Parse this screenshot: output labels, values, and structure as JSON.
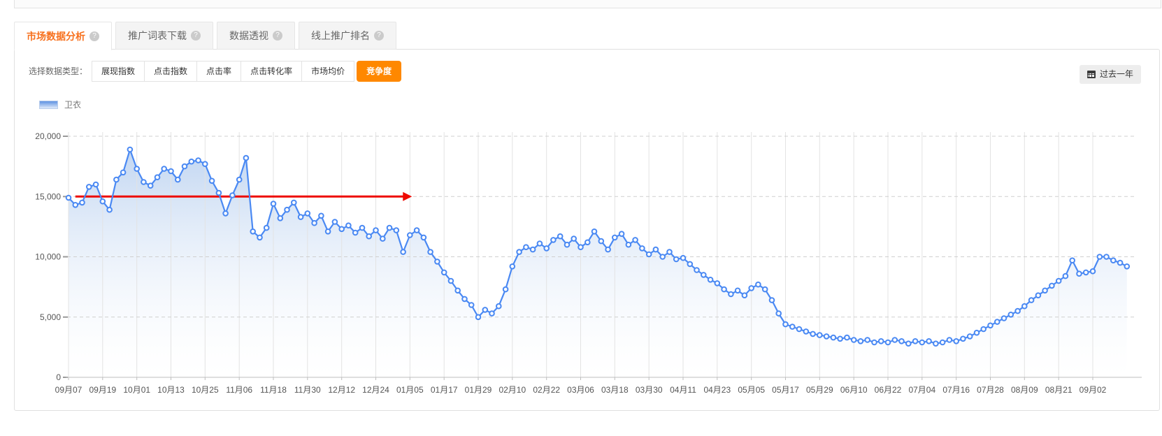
{
  "top_tabs": [
    {
      "label": "市场数据分析",
      "active": true
    },
    {
      "label": "推广词表下载",
      "active": false
    },
    {
      "label": "数据透视",
      "active": false
    },
    {
      "label": "线上推广排名",
      "active": false
    }
  ],
  "icons": {
    "help": "?",
    "calendar": "calendar-icon"
  },
  "controls": {
    "data_type_label": "选择数据类型：",
    "data_types": [
      {
        "label": "展现指数",
        "selected": false
      },
      {
        "label": "点击指数",
        "selected": false
      },
      {
        "label": "点击率",
        "selected": false
      },
      {
        "label": "点击转化率",
        "selected": false
      },
      {
        "label": "市场均价",
        "selected": false
      },
      {
        "label": "竞争度",
        "selected": true
      }
    ],
    "date_range": {
      "label": "过去一年",
      "icon": "calendar-icon"
    }
  },
  "legend": [
    {
      "label": "卫衣"
    }
  ],
  "colors": {
    "accent_orange": "#ff8800",
    "tab_active_text": "#f7701d",
    "line_blue": "#4a89f3",
    "area_top": "#b7cfef",
    "annotation_red": "#ee0900",
    "grid_v": "#e3e3e3",
    "grid_h": "#cfcfcf",
    "axis": "#bdbdbd",
    "tick_text": "#555555"
  },
  "chart_data": {
    "type": "line",
    "title": "",
    "xlabel": "",
    "ylabel": "",
    "ylim": [
      0,
      20000
    ],
    "y_ticks": [
      0,
      5000,
      10000,
      15000,
      20000
    ],
    "grid": true,
    "legend_position": "top-left",
    "x_tick_labels": [
      "09月07",
      "09月19",
      "10月01",
      "10月13",
      "10月25",
      "11月06",
      "11月18",
      "11月30",
      "12月12",
      "12月24",
      "01月05",
      "01月17",
      "01月29",
      "02月10",
      "02月22",
      "03月06",
      "03月18",
      "03月30",
      "04月11",
      "04月23",
      "05月05",
      "05月17",
      "05月29",
      "06月10",
      "06月22",
      "07月04",
      "07月16",
      "07月28",
      "08月09",
      "08月21",
      "09月02"
    ],
    "x_tick_every": 5,
    "series": [
      {
        "name": "卫衣",
        "marker": "circle-open",
        "values": [
          14900,
          14300,
          14500,
          15800,
          16000,
          14600,
          13900,
          16400,
          17000,
          18900,
          17300,
          16200,
          15900,
          16600,
          17300,
          17100,
          16400,
          17500,
          17900,
          18000,
          17700,
          16300,
          15300,
          13600,
          15100,
          16400,
          18200,
          12100,
          11600,
          12400,
          14400,
          13200,
          13900,
          14500,
          13300,
          13600,
          12800,
          13400,
          12100,
          12900,
          12300,
          12600,
          12000,
          12400,
          11700,
          12200,
          11500,
          12400,
          12200,
          10400,
          11800,
          12200,
          11600,
          10400,
          9600,
          8700,
          8000,
          7200,
          6500,
          6000,
          5000,
          5600,
          5300,
          5900,
          7300,
          9200,
          10400,
          10800,
          10600,
          11100,
          10700,
          11400,
          11700,
          11000,
          11500,
          10800,
          11200,
          12100,
          11300,
          10600,
          11600,
          11900,
          11000,
          11400,
          10700,
          10200,
          10600,
          10000,
          10400,
          9800,
          9900,
          9400,
          8900,
          8500,
          8100,
          7800,
          7300,
          6900,
          7200,
          6800,
          7400,
          7700,
          7300,
          6400,
          5300,
          4400,
          4200,
          4000,
          3800,
          3600,
          3500,
          3400,
          3300,
          3200,
          3300,
          3100,
          3000,
          3100,
          2900,
          3000,
          2900,
          3100,
          3000,
          2800,
          3000,
          2900,
          3000,
          2800,
          2900,
          3100,
          3000,
          3200,
          3400,
          3700,
          4000,
          4300,
          4600,
          4900,
          5200,
          5500,
          5900,
          6400,
          6800,
          7200,
          7600,
          8000,
          8400,
          9700,
          8600,
          8700,
          8800,
          10000,
          10000,
          9700,
          9500,
          9200
        ]
      }
    ],
    "annotation": {
      "type": "horizontal-arrow",
      "y_value": 15000,
      "x_from_index": 1,
      "x_to_index": 50.3,
      "color": "#ee0900"
    }
  }
}
